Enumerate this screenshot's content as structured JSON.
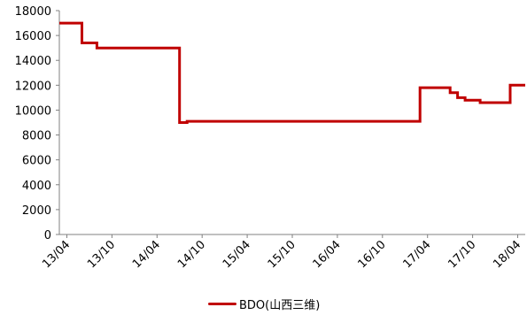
{
  "chart_data": {
    "type": "line",
    "title": "",
    "xlabel": "",
    "ylabel": "",
    "ylim": [
      0,
      18000
    ],
    "y_ticks": [
      0,
      2000,
      4000,
      6000,
      8000,
      10000,
      12000,
      14000,
      16000,
      18000
    ],
    "x_ticks": [
      "13/04",
      "13/10",
      "14/04",
      "14/10",
      "15/04",
      "15/10",
      "16/04",
      "16/10",
      "17/04",
      "17/10",
      "18/04"
    ],
    "x_range": [
      "2013-03",
      "2018-05"
    ],
    "grid": false,
    "legend_position": "bottom",
    "series": [
      {
        "name": "BDO(山西三维)",
        "color": "#c00000",
        "step": true,
        "points": [
          [
            "2013-03",
            17000
          ],
          [
            "2013-06",
            15400
          ],
          [
            "2013-08",
            15000
          ],
          [
            "2014-07",
            9000
          ],
          [
            "2014-08",
            9100
          ],
          [
            "2017-03",
            11800
          ],
          [
            "2017-07",
            11400
          ],
          [
            "2017-08",
            11000
          ],
          [
            "2017-09",
            10800
          ],
          [
            "2017-11",
            10600
          ],
          [
            "2018-03",
            12000
          ],
          [
            "2018-05",
            12000
          ]
        ]
      }
    ]
  }
}
